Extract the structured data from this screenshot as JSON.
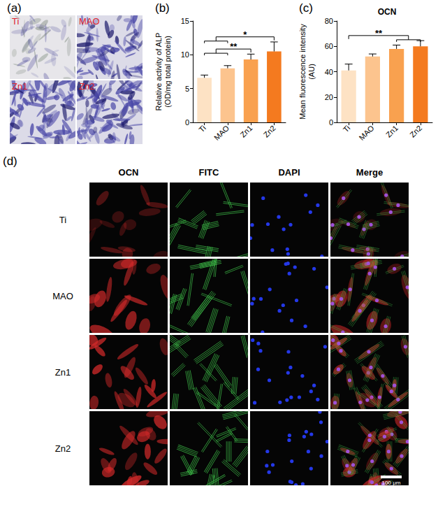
{
  "panel_a": {
    "label": "(a)",
    "images": [
      "Ti",
      "MAO",
      "Zn1",
      "Zn2"
    ]
  },
  "chart_data": [
    {
      "panel": "(b)",
      "type": "bar",
      "ylabel": [
        "Relative activity of ALP",
        "(OD/mg total protein)"
      ],
      "categories": [
        "Ti",
        "MAO",
        "Zn1",
        "Zn2"
      ],
      "values": [
        6.6,
        8.0,
        9.3,
        10.5
      ],
      "errors": [
        0.4,
        0.4,
        0.8,
        1.4
      ],
      "colors": [
        "#fde2c4",
        "#fcc48e",
        "#f9a14f",
        "#f47a1f"
      ],
      "ylim": [
        0,
        15
      ],
      "yticks": [
        0,
        5,
        10,
        15
      ],
      "grid": false,
      "significance": [
        {
          "text": "**",
          "left": [
            "Ti",
            "MAO"
          ],
          "right": [
            "Zn1"
          ]
        },
        {
          "text": "*",
          "left": [
            "Ti",
            "MAO"
          ],
          "right": [
            "Zn2"
          ]
        }
      ]
    },
    {
      "panel": "(c)",
      "type": "bar",
      "title": "OCN",
      "ylabel": [
        "Mean fluorescence intensity",
        "(AU)"
      ],
      "categories": [
        "Ti",
        "MAO",
        "Zn1",
        "Zn2"
      ],
      "values": [
        41,
        52,
        58,
        60
      ],
      "errors": [
        5,
        2,
        3,
        4.5
      ],
      "colors": [
        "#fde2c4",
        "#fcc48e",
        "#f9a14f",
        "#f47a1f"
      ],
      "ylim": [
        0,
        80
      ],
      "yticks": [
        0,
        20,
        40,
        60,
        80
      ],
      "grid": false,
      "significance": [
        {
          "text": "**",
          "left": [
            "Ti"
          ],
          "right": [
            "Zn1",
            "Zn2"
          ]
        }
      ]
    }
  ],
  "panel_d": {
    "label": "(d)",
    "columns": [
      "OCN",
      "FITC",
      "DAPI",
      "Merge"
    ],
    "rows": [
      "Ti",
      "MAO",
      "Zn1",
      "Zn2"
    ],
    "scale_bar": "100 μm"
  }
}
